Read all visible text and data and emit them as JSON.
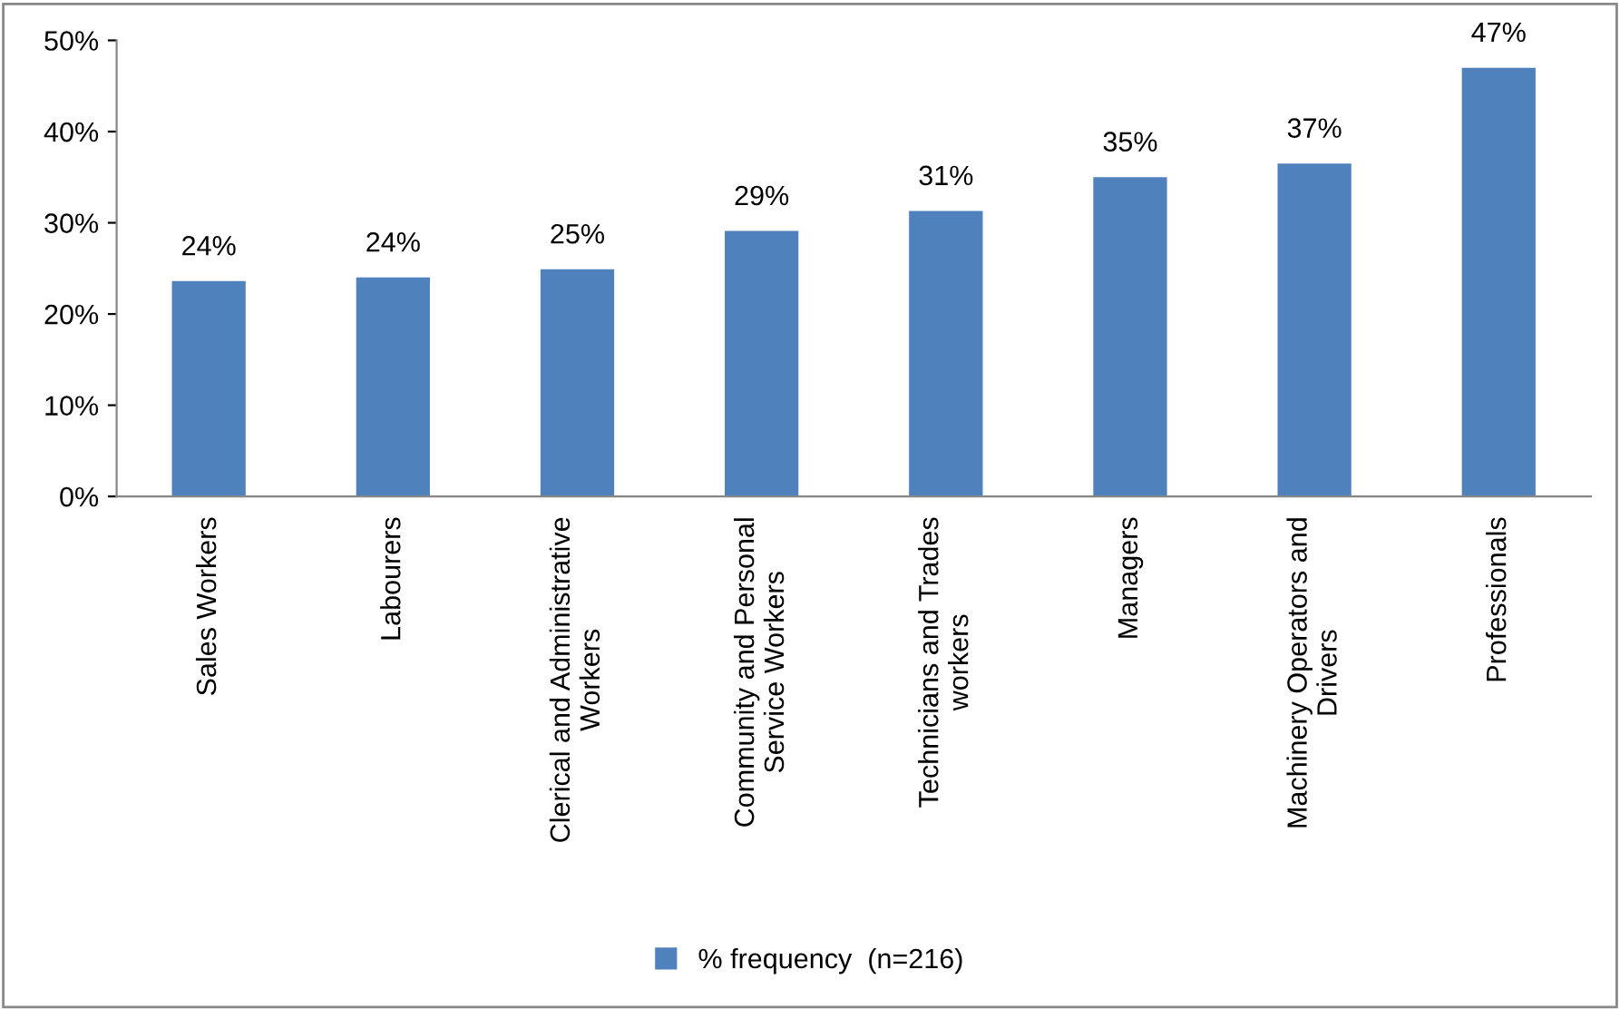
{
  "chart_data": {
    "type": "bar",
    "categories": [
      "Sales Workers",
      "Labourers",
      "Clerical and Administrative\nWorkers",
      "Community and Personal\nService Workers",
      "Technicians and Trades\nworkers",
      "Managers",
      "Machinery Operators and\nDrivers",
      "Professionals"
    ],
    "series": [
      {
        "name": "% frequency  (n=216)",
        "color": "#4f81bd",
        "values": [
          23.6,
          24.0,
          24.9,
          29.1,
          31.3,
          35.0,
          36.5,
          47.0
        ],
        "value_labels": [
          "24%",
          "24%",
          "25%",
          "29%",
          "31%",
          "35%",
          "37%",
          "47%"
        ]
      }
    ],
    "ylim": [
      0,
      50
    ],
    "yticks": [
      {
        "value": 0,
        "label": "0%"
      },
      {
        "value": 10,
        "label": "10%"
      },
      {
        "value": 20,
        "label": "20%"
      },
      {
        "value": 30,
        "label": "30%"
      },
      {
        "value": 40,
        "label": "40%"
      },
      {
        "value": 50,
        "label": "50%"
      }
    ],
    "grid": false,
    "legend": "bottom"
  }
}
